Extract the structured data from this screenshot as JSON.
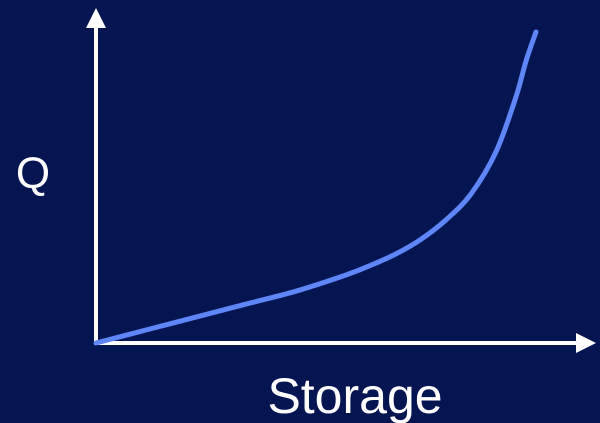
{
  "chart_data": {
    "type": "line",
    "xlabel": "Storage",
    "ylabel": "Q",
    "title": "",
    "grid": false,
    "legend": "none",
    "xlim": [
      0,
      100
    ],
    "ylim": [
      0,
      100
    ],
    "series": [
      {
        "x": [
          0,
          10,
          20,
          30,
          40,
          50,
          55,
          60,
          65,
          70,
          75,
          80,
          84,
          86,
          88
        ],
        "values": [
          0,
          4,
          8,
          12,
          16,
          21,
          24,
          27.5,
          32,
          38,
          46,
          59,
          76,
          87,
          96
        ]
      }
    ]
  },
  "colors": {
    "background": "#041552",
    "axes": "#ffffff",
    "curve": "#5f86f7",
    "text": "#ffffff"
  }
}
